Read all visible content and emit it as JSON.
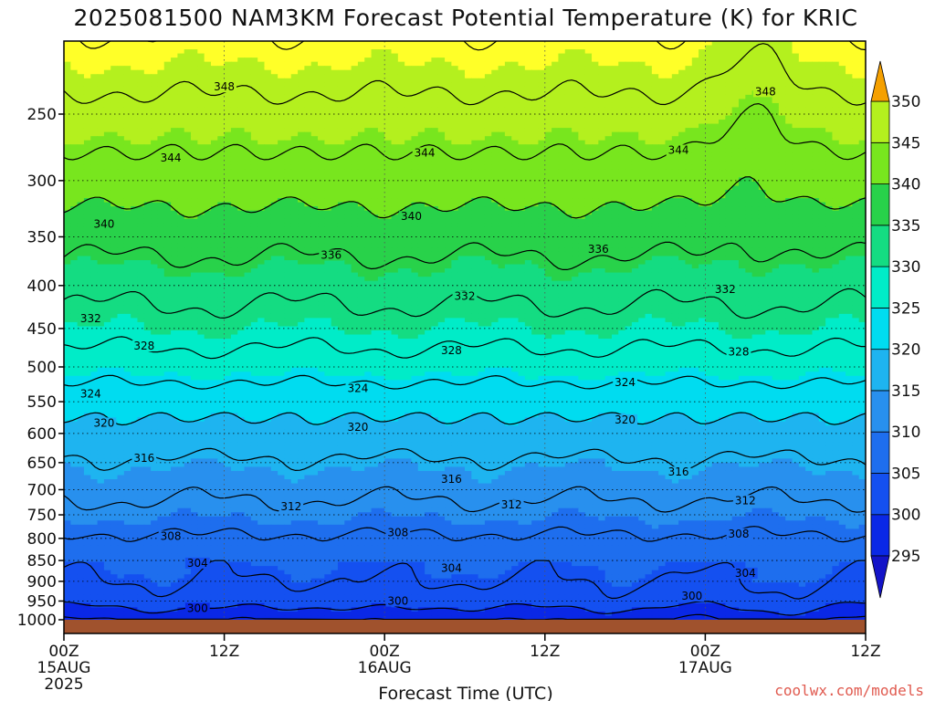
{
  "chart_data": {
    "type": "heatmap",
    "title": "2025081500 NAM3KM Forecast Potential Temperature (K) for KRIC",
    "xlabel": "Forecast Time (UTC)",
    "ylabel": "",
    "credit": "coolwx.com/models",
    "x_ticks": [
      {
        "hour": 0,
        "lines": [
          "00Z",
          "15AUG",
          "2025"
        ]
      },
      {
        "hour": 12,
        "lines": [
          "12Z"
        ]
      },
      {
        "hour": 24,
        "lines": [
          "00Z",
          "16AUG"
        ]
      },
      {
        "hour": 36,
        "lines": [
          "12Z"
        ]
      },
      {
        "hour": 48,
        "lines": [
          "00Z",
          "17AUG"
        ]
      },
      {
        "hour": 60,
        "lines": [
          "12Z"
        ]
      }
    ],
    "xlim": [
      0,
      60
    ],
    "y_ticks": [
      250,
      300,
      350,
      400,
      450,
      500,
      550,
      600,
      650,
      700,
      750,
      800,
      850,
      900,
      950,
      1000
    ],
    "ylim": [
      1000,
      200
    ],
    "y_scale": "log",
    "colorbar": {
      "ticks": [
        295,
        300,
        305,
        310,
        315,
        320,
        325,
        330,
        335,
        340,
        345,
        350
      ],
      "levels": [
        290,
        295,
        300,
        305,
        310,
        315,
        320,
        325,
        330,
        335,
        340,
        345,
        350,
        355
      ],
      "colors": [
        "#1414c8",
        "#0a28e6",
        "#1450f0",
        "#1e6eee",
        "#2890ee",
        "#1eb4f0",
        "#00dcf0",
        "#00ecc8",
        "#14dc82",
        "#28d24a",
        "#78e61e",
        "#b4f01e",
        "#ffff28",
        "#ffc814",
        "#f5a000"
      ]
    },
    "contour_interval": 4,
    "contour_labels": [
      {
        "value": 348,
        "hour": 12,
        "p": 232
      },
      {
        "value": 348,
        "hour": 52.5,
        "p": 235
      },
      {
        "value": 344,
        "hour": 8,
        "p": 282
      },
      {
        "value": 344,
        "hour": 27,
        "p": 278
      },
      {
        "value": 344,
        "hour": 46,
        "p": 276
      },
      {
        "value": 340,
        "hour": 3,
        "p": 338
      },
      {
        "value": 340,
        "hour": 26,
        "p": 331
      },
      {
        "value": 336,
        "hour": 20,
        "p": 368
      },
      {
        "value": 336,
        "hour": 40,
        "p": 362
      },
      {
        "value": 332,
        "hour": 2,
        "p": 438
      },
      {
        "value": 332,
        "hour": 30,
        "p": 412
      },
      {
        "value": 332,
        "hour": 49.5,
        "p": 404
      },
      {
        "value": 328,
        "hour": 6,
        "p": 472
      },
      {
        "value": 328,
        "hour": 29,
        "p": 478
      },
      {
        "value": 328,
        "hour": 50.5,
        "p": 480
      },
      {
        "value": 324,
        "hour": 2,
        "p": 538
      },
      {
        "value": 324,
        "hour": 22,
        "p": 530
      },
      {
        "value": 324,
        "hour": 42,
        "p": 522
      },
      {
        "value": 320,
        "hour": 3,
        "p": 583
      },
      {
        "value": 320,
        "hour": 22,
        "p": 590
      },
      {
        "value": 320,
        "hour": 42,
        "p": 578
      },
      {
        "value": 316,
        "hour": 6,
        "p": 642
      },
      {
        "value": 316,
        "hour": 29,
        "p": 680
      },
      {
        "value": 316,
        "hour": 46,
        "p": 667
      },
      {
        "value": 312,
        "hour": 17,
        "p": 733
      },
      {
        "value": 312,
        "hour": 33.5,
        "p": 730
      },
      {
        "value": 312,
        "hour": 51,
        "p": 721
      },
      {
        "value": 308,
        "hour": 8,
        "p": 795
      },
      {
        "value": 308,
        "hour": 25,
        "p": 787
      },
      {
        "value": 308,
        "hour": 50.5,
        "p": 790
      },
      {
        "value": 304,
        "hour": 10,
        "p": 856
      },
      {
        "value": 304,
        "hour": 29,
        "p": 868
      },
      {
        "value": 304,
        "hour": 51,
        "p": 880
      },
      {
        "value": 300,
        "hour": 10,
        "p": 969
      },
      {
        "value": 300,
        "hour": 25,
        "p": 950
      },
      {
        "value": 300,
        "hour": 47,
        "p": 937
      }
    ]
  }
}
